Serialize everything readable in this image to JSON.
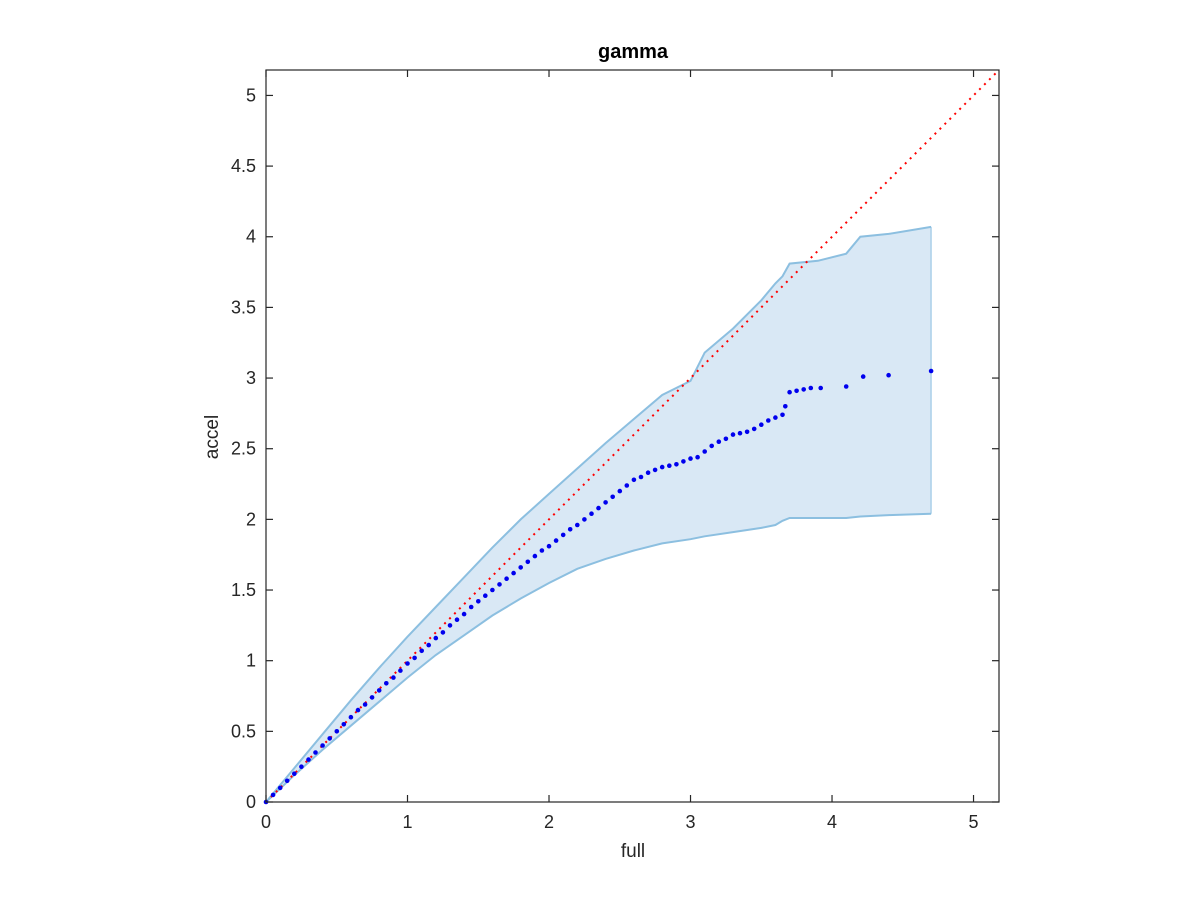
{
  "chart_data": {
    "type": "scatter",
    "title": "gamma",
    "xlabel": "full",
    "ylabel": "accel",
    "xlim": [
      0,
      5.18
    ],
    "ylim": [
      0,
      5.18
    ],
    "xticks": [
      "0",
      "1",
      "2",
      "3",
      "4",
      "5"
    ],
    "yticks": [
      "0",
      "0.5",
      "1",
      "1.5",
      "2",
      "2.5",
      "3",
      "3.5",
      "4",
      "4.5",
      "5"
    ],
    "grid": false,
    "legend": "none",
    "colors": {
      "points": "#0000ee",
      "reference_line": "#ff0000",
      "band_fill": "#d9e8f5",
      "band_edge": "#8cbfe0"
    },
    "reference_line": {
      "style": "dotted",
      "x": [
        0,
        5.18
      ],
      "y": [
        0,
        5.18
      ]
    },
    "band": {
      "x": [
        0,
        0.2,
        0.4,
        0.6,
        0.8,
        1.0,
        1.2,
        1.4,
        1.6,
        1.8,
        2.0,
        2.2,
        2.4,
        2.6,
        2.8,
        3.0,
        3.1,
        3.3,
        3.5,
        3.6,
        3.65,
        3.7,
        3.9,
        4.1,
        4.2,
        4.4,
        4.7
      ],
      "upper": [
        0,
        0.24,
        0.48,
        0.72,
        0.95,
        1.17,
        1.38,
        1.59,
        1.8,
        2.0,
        2.18,
        2.36,
        2.54,
        2.71,
        2.88,
        2.98,
        3.18,
        3.35,
        3.55,
        3.67,
        3.72,
        3.81,
        3.83,
        3.88,
        4.0,
        4.02,
        4.07
      ],
      "lower": [
        0,
        0.19,
        0.37,
        0.54,
        0.71,
        0.88,
        1.04,
        1.18,
        1.32,
        1.44,
        1.55,
        1.65,
        1.72,
        1.78,
        1.83,
        1.86,
        1.88,
        1.91,
        1.94,
        1.96,
        1.99,
        2.01,
        2.01,
        2.01,
        2.02,
        2.03,
        2.04
      ]
    },
    "series": [
      {
        "x": [
          0,
          0.05,
          0.1,
          0.15,
          0.2,
          0.25,
          0.3,
          0.35,
          0.4,
          0.45,
          0.5,
          0.55,
          0.6,
          0.65,
          0.7,
          0.75,
          0.8,
          0.85,
          0.9,
          0.95,
          1.0,
          1.05,
          1.1,
          1.15,
          1.2,
          1.25,
          1.3,
          1.35,
          1.4,
          1.45,
          1.5,
          1.55,
          1.6,
          1.65,
          1.7,
          1.75,
          1.8,
          1.85,
          1.9,
          1.95,
          2.0,
          2.05,
          2.1,
          2.15,
          2.2,
          2.25,
          2.3,
          2.35,
          2.4,
          2.45,
          2.5,
          2.55,
          2.6,
          2.65,
          2.7,
          2.75,
          2.8,
          2.85,
          2.9,
          2.95,
          3.0,
          3.05,
          3.1,
          3.15,
          3.2,
          3.25,
          3.3,
          3.35,
          3.4,
          3.45,
          3.5,
          3.55,
          3.6,
          3.65,
          3.67,
          3.7,
          3.75,
          3.8,
          3.85,
          3.92,
          4.1,
          4.22,
          4.4,
          4.7
        ],
        "y": [
          0,
          0.05,
          0.1,
          0.15,
          0.2,
          0.25,
          0.3,
          0.35,
          0.4,
          0.45,
          0.5,
          0.55,
          0.6,
          0.65,
          0.69,
          0.74,
          0.79,
          0.84,
          0.88,
          0.93,
          0.98,
          1.02,
          1.07,
          1.11,
          1.16,
          1.2,
          1.25,
          1.29,
          1.33,
          1.38,
          1.42,
          1.46,
          1.5,
          1.54,
          1.58,
          1.62,
          1.66,
          1.7,
          1.74,
          1.78,
          1.81,
          1.85,
          1.89,
          1.93,
          1.96,
          2.0,
          2.04,
          2.08,
          2.12,
          2.16,
          2.2,
          2.24,
          2.28,
          2.3,
          2.33,
          2.35,
          2.37,
          2.38,
          2.39,
          2.41,
          2.43,
          2.44,
          2.48,
          2.52,
          2.55,
          2.57,
          2.6,
          2.61,
          2.62,
          2.64,
          2.67,
          2.7,
          2.72,
          2.74,
          2.8,
          2.9,
          2.91,
          2.92,
          2.93,
          2.93,
          2.94,
          3.01,
          3.02,
          3.05
        ]
      }
    ]
  }
}
